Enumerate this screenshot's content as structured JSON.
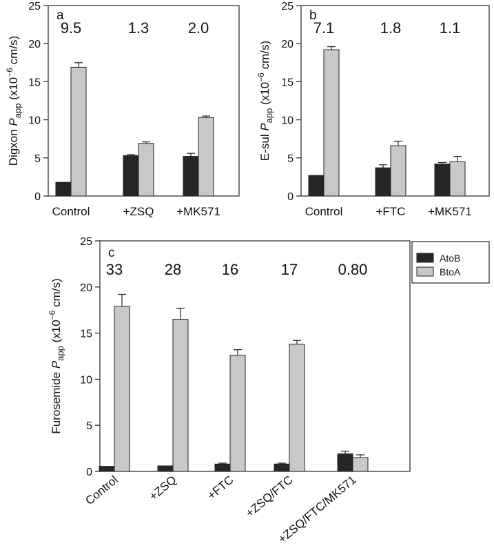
{
  "colors": {
    "AtoB": "#262626",
    "BtoA": "#c8c8c8",
    "axis": "#222222",
    "error_bar": "#222222"
  },
  "legend": {
    "placement": "top-right",
    "entries": [
      {
        "key": "AtoB",
        "label": "AtoB"
      },
      {
        "key": "BtoA",
        "label": "BtoA"
      }
    ]
  },
  "chart_data": [
    {
      "type": "bar",
      "panel": "a",
      "ylabel_pre": "Digxon ",
      "ylabel_italic": "P",
      "ylabel_sub": "app",
      "ylabel_unit_pre": " (x10",
      "ylabel_sup": "−6",
      "ylabel_unit_post": " cm/s)",
      "categories": [
        "Control",
        "+ZSQ",
        "+MK571"
      ],
      "series": [
        {
          "name": "AtoB",
          "values": [
            1.8,
            5.3,
            5.2
          ],
          "errors": [
            0,
            0.15,
            0.4
          ]
        },
        {
          "name": "BtoA",
          "values": [
            16.9,
            6.9,
            10.3
          ],
          "errors": [
            0.6,
            0.2,
            0.2
          ]
        }
      ],
      "ratio_labels": [
        "9.5",
        "1.3",
        "2.0"
      ],
      "ylim": [
        0,
        25
      ],
      "yticks": [
        "0",
        "5",
        "10",
        "15",
        "20",
        "25"
      ],
      "xtick_rotation": 0
    },
    {
      "type": "bar",
      "panel": "b",
      "ylabel_pre": "E-sul ",
      "ylabel_italic": "P",
      "ylabel_sub": "app",
      "ylabel_unit_pre": " (x10",
      "ylabel_sup": "−6",
      "ylabel_unit_post": " cm/s)",
      "categories": [
        "Control",
        "+FTC",
        "+MK571"
      ],
      "series": [
        {
          "name": "AtoB",
          "values": [
            2.7,
            3.7,
            4.2
          ],
          "errors": [
            0,
            0.4,
            0.2
          ]
        },
        {
          "name": "BtoA",
          "values": [
            19.2,
            6.6,
            4.5
          ],
          "errors": [
            0.4,
            0.6,
            0.7
          ]
        }
      ],
      "ratio_labels": [
        "7.1",
        "1.8",
        "1.1"
      ],
      "ylim": [
        0,
        25
      ],
      "yticks": [
        "0",
        "5",
        "10",
        "15",
        "20",
        "25"
      ],
      "xtick_rotation": 0
    },
    {
      "type": "bar",
      "panel": "c",
      "ylabel_pre": "Furosemide ",
      "ylabel_italic": "P",
      "ylabel_sub": "app",
      "ylabel_unit_pre": " (x10",
      "ylabel_sup": "−6",
      "ylabel_unit_post": " cm/s)",
      "categories": [
        "Control",
        "+ZSQ",
        "+FTC",
        "+ZSQ/FTC",
        "+ZSQ/FTC/MK571"
      ],
      "series": [
        {
          "name": "AtoB",
          "values": [
            0.55,
            0.6,
            0.8,
            0.8,
            1.9
          ],
          "errors": [
            0,
            0,
            0.1,
            0.1,
            0.3
          ]
        },
        {
          "name": "BtoA",
          "values": [
            17.9,
            16.5,
            12.6,
            13.8,
            1.5
          ],
          "errors": [
            1.3,
            1.2,
            0.6,
            0.4,
            0.3
          ]
        }
      ],
      "ratio_labels": [
        "33",
        "28",
        "16",
        "17",
        "0.80"
      ],
      "ylim": [
        0,
        25
      ],
      "yticks": [
        "0",
        "5",
        "10",
        "15",
        "20",
        "25"
      ],
      "xtick_rotation": -40
    }
  ]
}
